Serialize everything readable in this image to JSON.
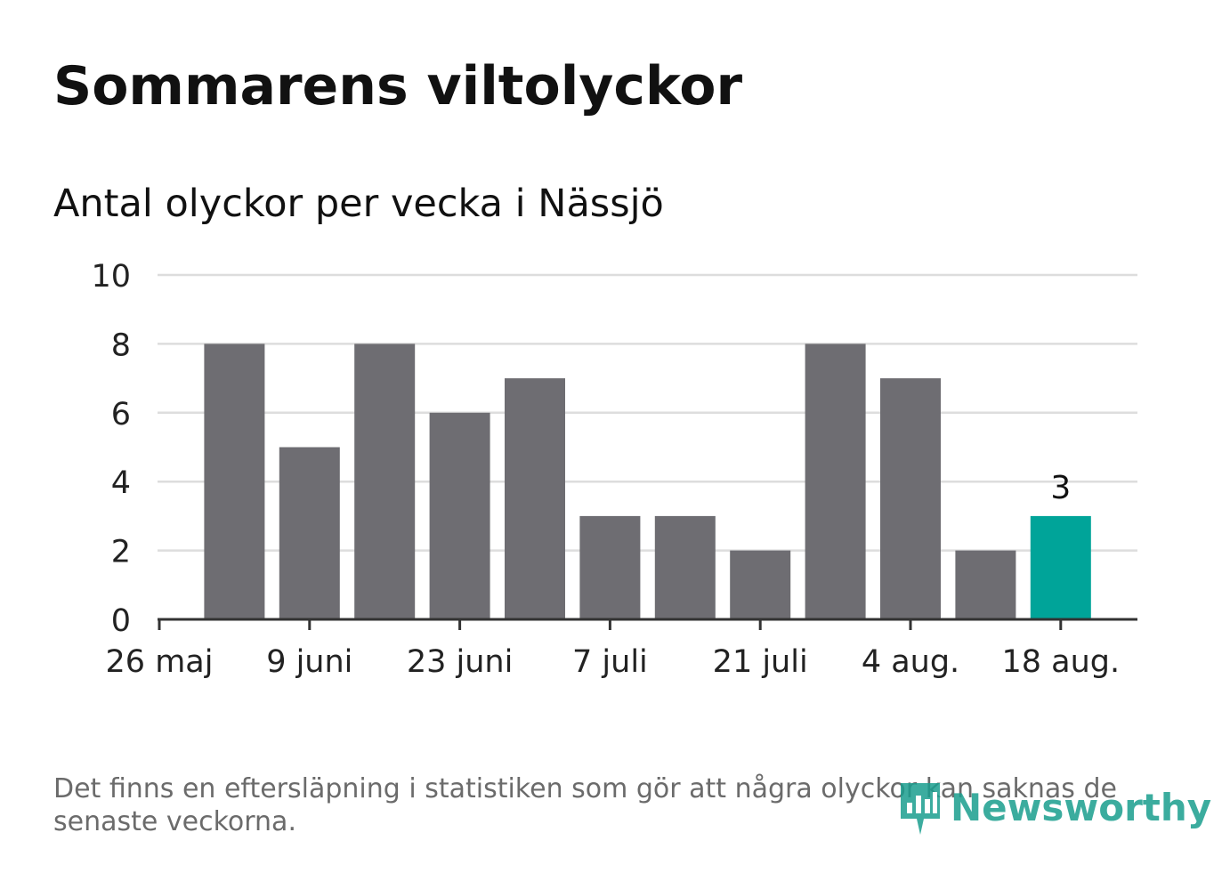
{
  "title": "Sommarens viltolyckor",
  "subtitle": "Antal olyckor per vecka i Nässjö",
  "footnote": "Det finns en eftersläpning i statistiken som gör att några olyckor kan saknas de senaste veckorna.",
  "logo": {
    "text": "Newsworthy",
    "icon": "newsworthy-bar-chart-icon"
  },
  "colors": {
    "bar": "#6e6d72",
    "highlight": "#00a499",
    "grid": "#dddddd",
    "axis": "#333333"
  },
  "chart_data": {
    "type": "bar",
    "title": "Antal olyckor per vecka i Nässjö",
    "xlabel": "",
    "ylabel": "",
    "ylim": [
      0,
      10
    ],
    "yticks": [
      0,
      2,
      4,
      6,
      8,
      10
    ],
    "x_tick_labels": [
      "26 maj",
      "9 juni",
      "23 juni",
      "7 juli",
      "21 juli",
      "4 aug.",
      "18 aug."
    ],
    "values": [
      8,
      5,
      8,
      6,
      7,
      3,
      3,
      2,
      8,
      7,
      2,
      3
    ],
    "highlight_index": 11,
    "highlight_label": "3",
    "grid": true,
    "legend": "none"
  }
}
